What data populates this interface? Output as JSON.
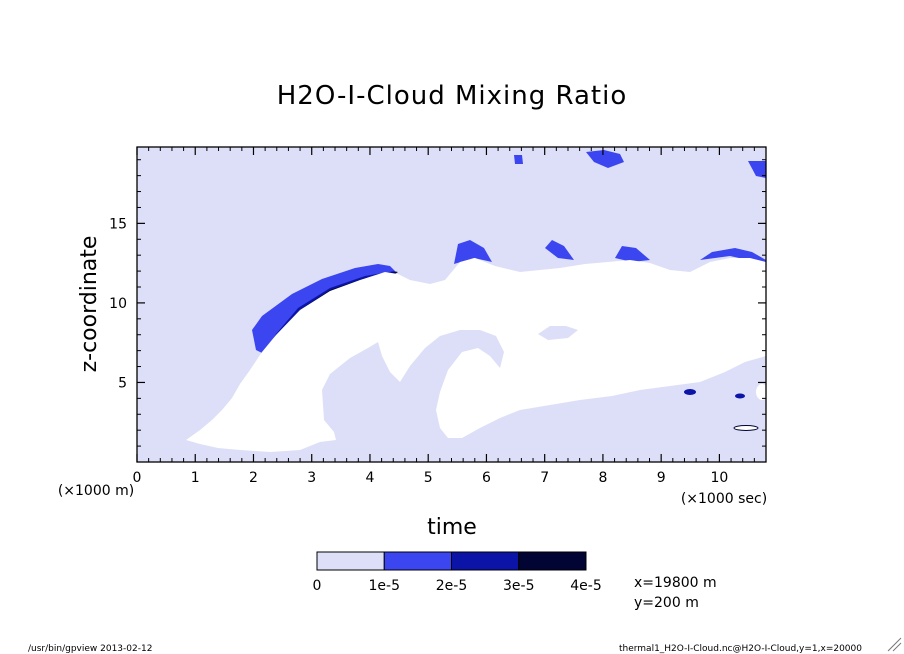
{
  "chart_data": {
    "type": "heatmap",
    "title": "H2O-I-Cloud Mixing Ratio",
    "xlabel": "time",
    "ylabel": "z-coordinate",
    "x_unit_note": "(×1000 sec)",
    "y_unit_note": "(×1000 m)",
    "xlim": [
      0,
      10.8
    ],
    "ylim": [
      0,
      19.8
    ],
    "x_ticks": [
      0,
      1,
      2,
      3,
      4,
      5,
      6,
      7,
      8,
      9,
      10
    ],
    "x_tick_labels": [
      "0",
      "1",
      "2",
      "3",
      "4",
      "5",
      "6",
      "7",
      "8",
      "9",
      "10"
    ],
    "y_ticks": [
      5,
      10,
      15
    ],
    "y_tick_labels": [
      "5",
      "10",
      "15"
    ],
    "grid": false,
    "colorbar": {
      "levels": [
        0,
        1e-05,
        2e-05,
        3e-05,
        4e-05
      ],
      "labels": [
        "0",
        "1e-5",
        "2e-5",
        "3e-5",
        "4e-5"
      ],
      "colors": [
        "#dcdff7",
        "#3b46f0",
        "#0c14a8",
        "#020533"
      ]
    },
    "background_color": "#dcdff7",
    "zero_region_color": "#ffffff"
  },
  "annotations": {
    "coord_x": "x=19800 m",
    "coord_y": "y=200 m",
    "footer_left": "/usr/bin/gpview  2013-02-12",
    "footer_right": "thermal1_H2O-I-Cloud.nc@H2O-I-Cloud,y=1,x=20000"
  }
}
